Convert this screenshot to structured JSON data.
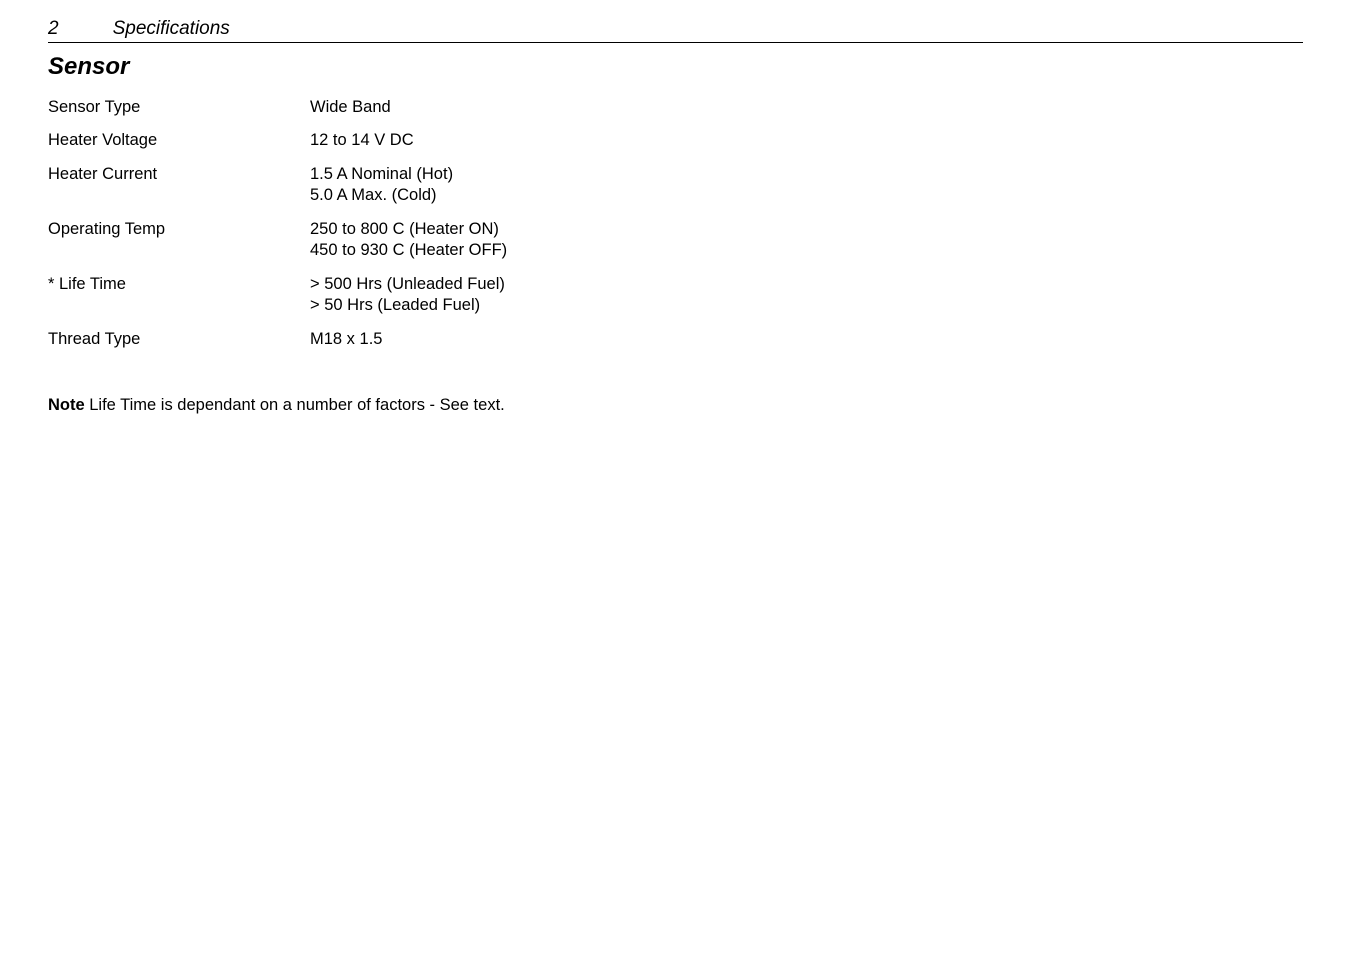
{
  "header": {
    "page_number": "2",
    "section_path": "Specifications"
  },
  "section": {
    "title": "Sensor"
  },
  "specs": [
    {
      "label": "Sensor Type",
      "value": "Wide Band"
    },
    {
      "label": "Heater Voltage",
      "value": "12 to 14 V DC"
    },
    {
      "label": "Heater Current",
      "value": "1.5 A Nominal (Hot)\n5.0 A Max. (Cold)"
    },
    {
      "label": "Operating Temp",
      "value": "250 to 800 C (Heater ON)\n450 to 930 C (Heater OFF)"
    },
    {
      "label": "* Life Time",
      "value": "> 500 Hrs (Unleaded Fuel)\n>  50 Hrs (Leaded Fuel)"
    },
    {
      "label": "Thread Type",
      "value": "M18 x 1.5"
    }
  ],
  "note": {
    "lead": "Note",
    "text": "  Life Time is dependant on a number of factors - See text."
  }
}
